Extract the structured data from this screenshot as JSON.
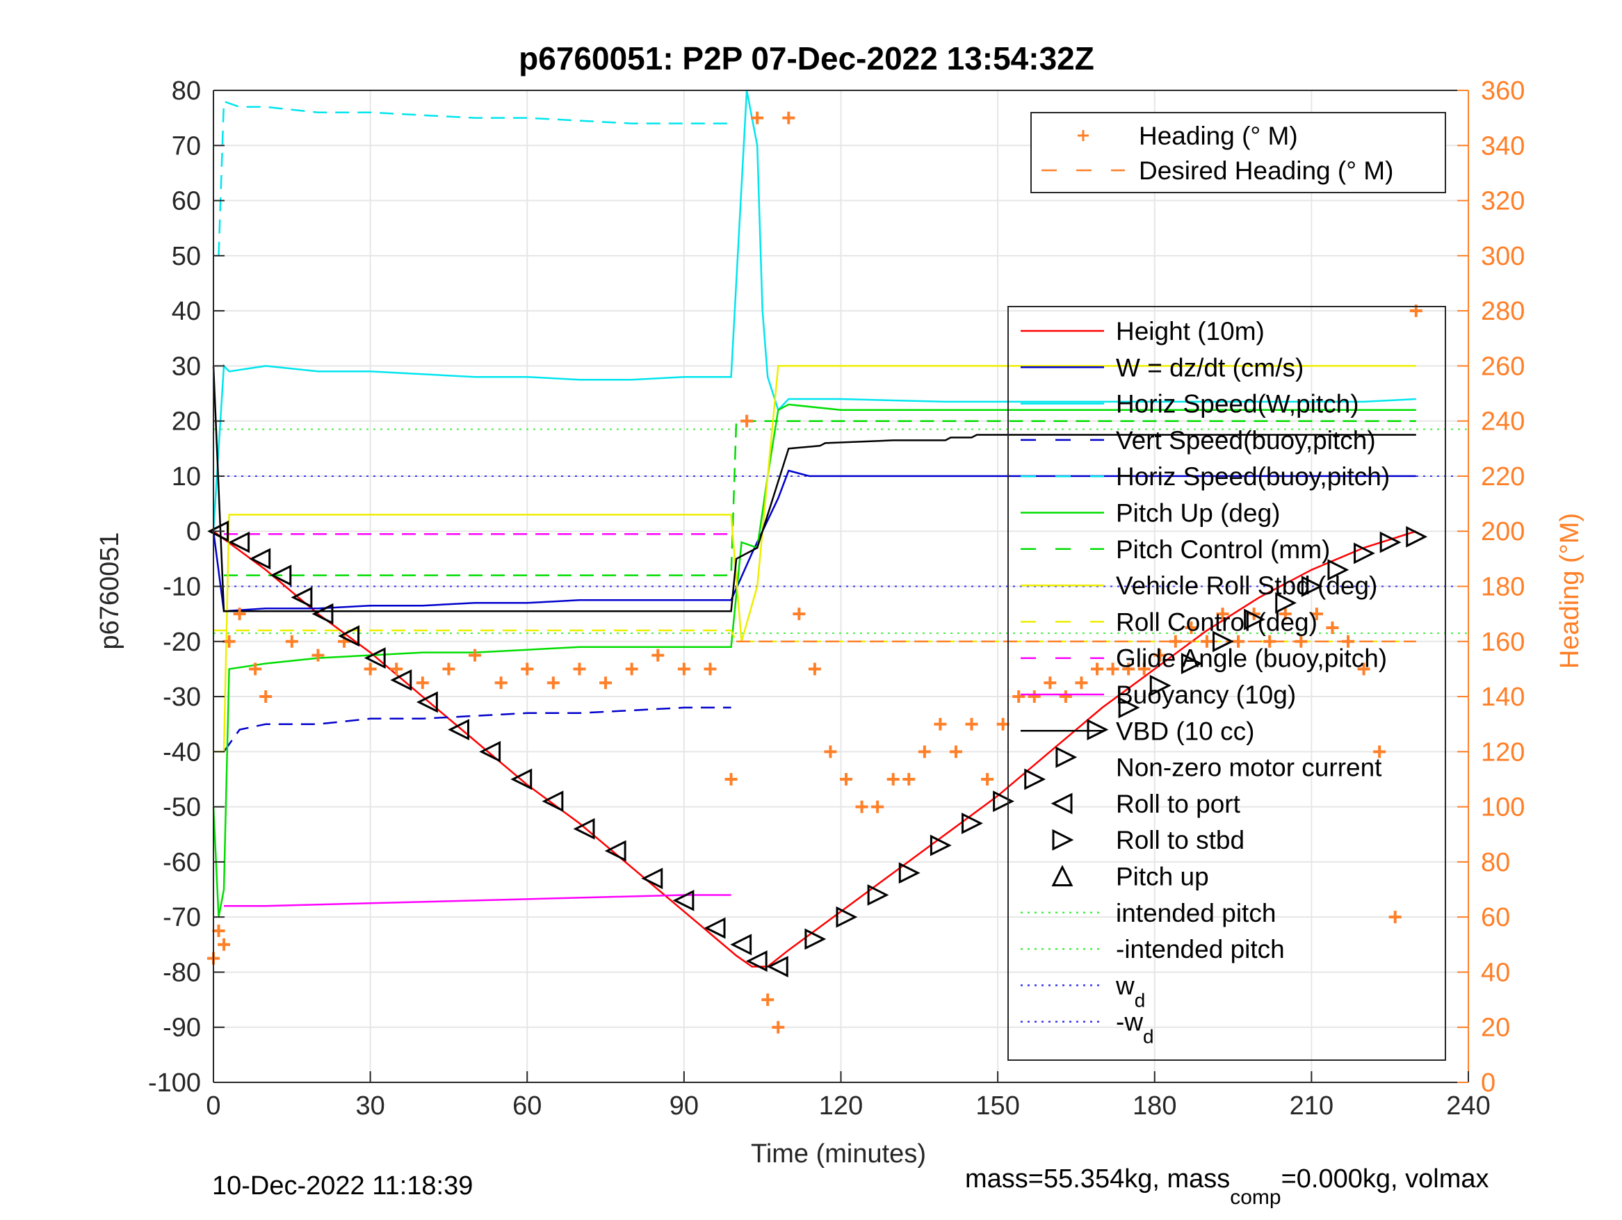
{
  "chart_data": {
    "type": "line",
    "title": "p6760051: P2P 07-Dec-2022 13:54:32Z",
    "xlabel": "Time (minutes)",
    "ylabel": "p6760051",
    "ylabel_right": "Heading (°M)",
    "xlim": [
      0,
      240
    ],
    "ylim": [
      -100,
      80
    ],
    "ylim_right": [
      0,
      360
    ],
    "xticks": [
      "0",
      "30",
      "60",
      "90",
      "120",
      "150",
      "180",
      "210",
      "240"
    ],
    "yticks": [
      "80",
      "70",
      "60",
      "50",
      "40",
      "30",
      "20",
      "10",
      "0",
      "-10",
      "-20",
      "-30",
      "-40",
      "-50",
      "-60",
      "-70",
      "-80",
      "-90",
      "-100"
    ],
    "yticks_right": [
      "360",
      "340",
      "320",
      "300",
      "280",
      "260",
      "240",
      "220",
      "200",
      "180",
      "160",
      "140",
      "120",
      "100",
      "80",
      "60",
      "40",
      "20",
      "0"
    ],
    "grid": true,
    "footer_left": "10-Dec-2022 11:18:39",
    "footer_right": "mass=55.354kg, mass",
    "footer_right_sub": "comp",
    "footer_right_end": "=0.000kg, volmax",
    "legend_heading": [
      {
        "label": "Heading (° M)",
        "color": "#ff7f27",
        "style": "plus"
      },
      {
        "label": "Desired Heading (° M)",
        "color": "#ff7f27",
        "style": "dash"
      }
    ],
    "legend_main": [
      {
        "label": "Height (10m)",
        "color": "#ff0000",
        "style": "solid"
      },
      {
        "label": "W = dz/dt (cm/s)",
        "color": "#0000cc",
        "style": "solid"
      },
      {
        "label": "Horiz Speed(W,pitch)",
        "color": "#00e5ee",
        "style": "solid"
      },
      {
        "label": "Vert Speed(buoy,pitch)",
        "color": "#0000cc",
        "style": "dash"
      },
      {
        "label": "Horiz Speed(buoy,pitch)",
        "color": "#00e5ee",
        "style": "dash"
      },
      {
        "label": "Pitch Up (deg)",
        "color": "#00dd00",
        "style": "solid"
      },
      {
        "label": "Pitch Control (mm)",
        "color": "#00dd00",
        "style": "dash"
      },
      {
        "label": "Vehicle Roll Stbd (deg)",
        "color": "#eeee00",
        "style": "solid"
      },
      {
        "label": "Roll Control (deg)",
        "color": "#eeee00",
        "style": "dash"
      },
      {
        "label": "Glide Angle (buoy,pitch)",
        "color": "#ff00ff",
        "style": "dash"
      },
      {
        "label": "Buoyancy (10g)",
        "color": "#ff00ff",
        "style": "solid"
      },
      {
        "label": "VBD (10 cc)",
        "color": "#000000",
        "style": "solid"
      },
      {
        "label": "Non-zero motor current",
        "color": "#000000",
        "style": "none"
      },
      {
        "label": "Roll to port",
        "color": "#000000",
        "style": "tri-left"
      },
      {
        "label": "Roll to stbd",
        "color": "#000000",
        "style": "tri-right"
      },
      {
        "label": "Pitch up",
        "color": "#000000",
        "style": "tri-up"
      },
      {
        "label": "intended pitch",
        "color": "#44ee44",
        "style": "dot"
      },
      {
        "label": "-intended pitch",
        "color": "#44ee44",
        "style": "dot"
      },
      {
        "label": "w",
        "sub": "d",
        "color": "#3333ee",
        "style": "dot"
      },
      {
        "label": "-w",
        "sub": "d",
        "color": "#3333ee",
        "style": "dot"
      }
    ],
    "reference_lines": [
      {
        "name": "intended pitch",
        "y": 18.5,
        "color": "#44ee44"
      },
      {
        "name": "-intended pitch",
        "y": -18.5,
        "color": "#44ee44"
      },
      {
        "name": "w_d",
        "y": 10,
        "color": "#3333ee"
      },
      {
        "name": "-w_d",
        "y": -10,
        "color": "#3333ee"
      }
    ],
    "series": [
      {
        "name": "Height (10m)",
        "color": "#ff0000",
        "x": [
          0,
          10,
          20,
          30,
          40,
          50,
          60,
          70,
          80,
          90,
          100,
          103,
          106,
          110,
          120,
          130,
          140,
          150,
          160,
          170,
          180,
          190,
          200,
          210,
          220,
          230
        ],
        "y": [
          0,
          -7,
          -15,
          -22,
          -30,
          -38,
          -46,
          -53,
          -61,
          -69,
          -77,
          -79,
          -79,
          -76,
          -69,
          -62,
          -55,
          -48,
          -40,
          -32,
          -25,
          -18,
          -12,
          -7,
          -3,
          0
        ]
      },
      {
        "name": "W = dz/dt (cm/s)",
        "color": "#0000cc",
        "x": [
          0,
          2,
          10,
          20,
          30,
          40,
          50,
          60,
          70,
          80,
          90,
          99,
          103,
          108,
          110,
          114,
          120,
          140,
          160,
          180,
          200,
          220,
          230
        ],
        "y": [
          0,
          -14.5,
          -14,
          -14,
          -13.5,
          -13.5,
          -13,
          -13,
          -12.5,
          -12.5,
          -12.5,
          -12.5,
          -4,
          6,
          11,
          10,
          10,
          10,
          10,
          10,
          10,
          10,
          10
        ]
      },
      {
        "name": "Horiz Speed(W,pitch)",
        "color": "#00e5ee",
        "x": [
          0,
          2,
          3,
          10,
          20,
          30,
          40,
          50,
          60,
          70,
          80,
          90,
          99,
          102,
          104,
          105,
          106,
          108,
          110,
          120,
          140,
          160,
          180,
          200,
          220,
          230
        ],
        "y": [
          0,
          30,
          29,
          30,
          29,
          29,
          28.5,
          28,
          28,
          27.5,
          27.5,
          28,
          28,
          80,
          70,
          40,
          28,
          22,
          24,
          24,
          23.5,
          23.5,
          23.5,
          23.5,
          23.5,
          24
        ]
      },
      {
        "name": "Vert Speed(buoy,pitch)",
        "color": "#0000cc",
        "x": [
          2,
          5,
          10,
          20,
          30,
          40,
          50,
          60,
          70,
          80,
          90,
          99
        ],
        "y": [
          -40,
          -36,
          -35,
          -35,
          -34,
          -34,
          -33.5,
          -33,
          -33,
          -32.5,
          -32,
          -32
        ]
      },
      {
        "name": "Horiz Speed(buoy,pitch)",
        "color": "#00e5ee",
        "x": [
          1,
          2,
          5,
          10,
          20,
          30,
          40,
          50,
          60,
          70,
          80,
          90,
          99
        ],
        "y": [
          50,
          78,
          77,
          77,
          76,
          76,
          75.5,
          75,
          75,
          74.5,
          74,
          74,
          74
        ]
      },
      {
        "name": "Pitch Up (deg)",
        "color": "#00dd00",
        "x": [
          0,
          1,
          2,
          3,
          10,
          20,
          30,
          40,
          50,
          60,
          70,
          80,
          90,
          99,
          101,
          104,
          106,
          108,
          110,
          120,
          140,
          160,
          180,
          200,
          220,
          230
        ],
        "y": [
          -50,
          -70,
          -65,
          -25,
          -24,
          -23,
          -22.5,
          -22,
          -22,
          -21.5,
          -21,
          -21,
          -21,
          -21,
          -2,
          -3,
          10,
          22,
          23,
          22,
          22,
          22,
          22,
          22,
          22,
          22
        ]
      },
      {
        "name": "Pitch Control (mm)",
        "color": "#00dd00",
        "x": [
          2,
          99,
          100,
          110,
          230
        ],
        "y": [
          -8,
          -8,
          20,
          20,
          20
        ]
      },
      {
        "name": "Vehicle Roll Stbd (deg)",
        "color": "#eeee00",
        "x": [
          0,
          2,
          3,
          99,
          101,
          104,
          108,
          230
        ],
        "y": [
          -40,
          -40,
          3,
          3,
          -20,
          -10,
          30,
          30
        ]
      },
      {
        "name": "Roll Control (deg)",
        "color": "#eeee00",
        "x": [
          0,
          99,
          100,
          230
        ],
        "y": [
          -18,
          -18,
          -20,
          -20
        ]
      },
      {
        "name": "Glide Angle (buoy,pitch)",
        "color": "#ff00ff",
        "x": [
          2,
          99
        ],
        "y": [
          -0.5,
          -0.5
        ]
      },
      {
        "name": "Buoyancy (10g)",
        "color": "#ff00ff",
        "x": [
          2,
          10,
          30,
          50,
          70,
          90,
          99
        ],
        "y": [
          -68,
          -68,
          -67.5,
          -67,
          -66.5,
          -66,
          -66
        ]
      },
      {
        "name": "VBD (10 cc)",
        "color": "#000000",
        "x": [
          0,
          2,
          99,
          100,
          104,
          110,
          116,
          117,
          130,
          140,
          141,
          145,
          146,
          200,
          230
        ],
        "y": [
          30,
          -14.5,
          -14.5,
          -5,
          -3,
          15,
          15.5,
          16,
          16.5,
          16.5,
          17,
          17,
          17.5,
          17.5,
          17.5
        ]
      },
      {
        "name": "Heading (° M)",
        "color": "#ff7f27",
        "axis": "right",
        "type": "scatter",
        "x": [
          0,
          1,
          2,
          3,
          5,
          8,
          10,
          15,
          20,
          25,
          30,
          35,
          40,
          45,
          50,
          55,
          60,
          65,
          70,
          75,
          80,
          85,
          90,
          95,
          99,
          102,
          104,
          106,
          108,
          110,
          112,
          115,
          118,
          121,
          124,
          127,
          130,
          133,
          136,
          139,
          142,
          145,
          148,
          151,
          154,
          157,
          160,
          163,
          166,
          169,
          172,
          175,
          178,
          181,
          184,
          187,
          190,
          193,
          196,
          199,
          202,
          205,
          208,
          211,
          214,
          217,
          220,
          223,
          226,
          228,
          230
        ],
        "y": [
          45,
          55,
          50,
          160,
          170,
          150,
          140,
          160,
          155,
          160,
          150,
          150,
          145,
          150,
          155,
          145,
          150,
          145,
          150,
          145,
          150,
          155,
          150,
          150,
          110,
          240,
          350,
          30,
          20,
          350,
          170,
          150,
          120,
          110,
          100,
          100,
          110,
          110,
          120,
          130,
          120,
          130,
          110,
          130,
          140,
          140,
          145,
          140,
          145,
          150,
          150,
          150,
          150,
          155,
          160,
          165,
          160,
          170,
          160,
          170,
          160,
          170,
          160,
          170,
          165,
          160,
          150,
          120,
          60,
          330,
          280
        ]
      },
      {
        "name": "Desired Heading (° M)",
        "color": "#ff7f27",
        "axis": "right",
        "type": "dash",
        "x": [
          100,
          230
        ],
        "y": [
          160,
          160
        ]
      }
    ],
    "markers_port": {
      "x": [
        1,
        5,
        9,
        13,
        17,
        21,
        26,
        31,
        36,
        41,
        47,
        53,
        59,
        65,
        71,
        77,
        84,
        90,
        96,
        101,
        104,
        108
      ],
      "y": [
        0,
        -2,
        -5,
        -8,
        -12,
        -15,
        -19,
        -23,
        -27,
        -31,
        -36,
        -40,
        -45,
        -49,
        -54,
        -58,
        -63,
        -67,
        -72,
        -75,
        -78,
        -79
      ]
    },
    "markers_stbd": {
      "x": [
        115,
        121,
        127,
        133,
        139,
        145,
        151,
        157,
        163,
        169,
        175,
        181,
        187,
        193,
        199,
        205,
        210,
        215,
        220,
        225,
        230
      ],
      "y": [
        -74,
        -70,
        -66,
        -62,
        -57,
        -53,
        -49,
        -45,
        -41,
        -36,
        -32,
        -28,
        -24,
        -20,
        -16,
        -13,
        -10,
        -7,
        -4,
        -2,
        -1
      ]
    }
  }
}
